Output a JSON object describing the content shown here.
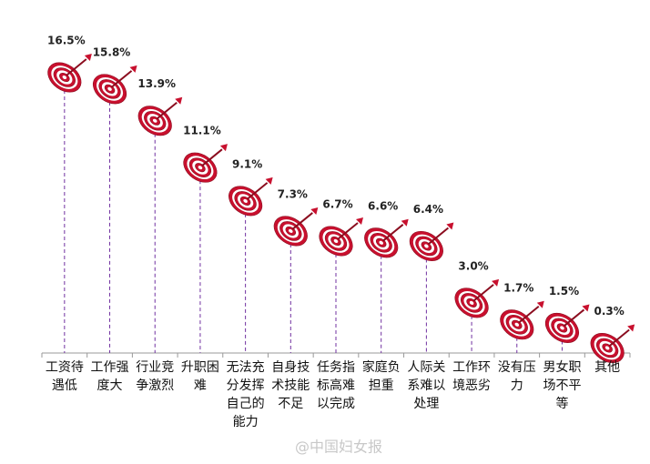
{
  "chart_data": {
    "type": "target",
    "categories": [
      "工资待遇低",
      "工作强度大",
      "行业竞争激烈",
      "升职困难",
      "无法充分发挥自己的能力",
      "自身技术技能不足",
      "任务指标高难以完成",
      "家庭负担重",
      "人际关系难以处理",
      "工作环境恶劣",
      "没有压力",
      "男女职场不平等",
      "其他"
    ],
    "values": [
      16.5,
      15.8,
      13.9,
      11.1,
      9.1,
      7.3,
      6.7,
      6.6,
      6.4,
      3.0,
      1.7,
      1.5,
      0.3
    ],
    "value_labels": [
      "16.5%",
      "15.8%",
      "13.9%",
      "11.1%",
      "9.1%",
      "7.3%",
      "6.7%",
      "6.6%",
      "6.4%",
      "3.0%",
      "1.7%",
      "1.5%",
      "0.3%"
    ],
    "color": "#c8102e",
    "watermark": "@中国妇女报"
  }
}
